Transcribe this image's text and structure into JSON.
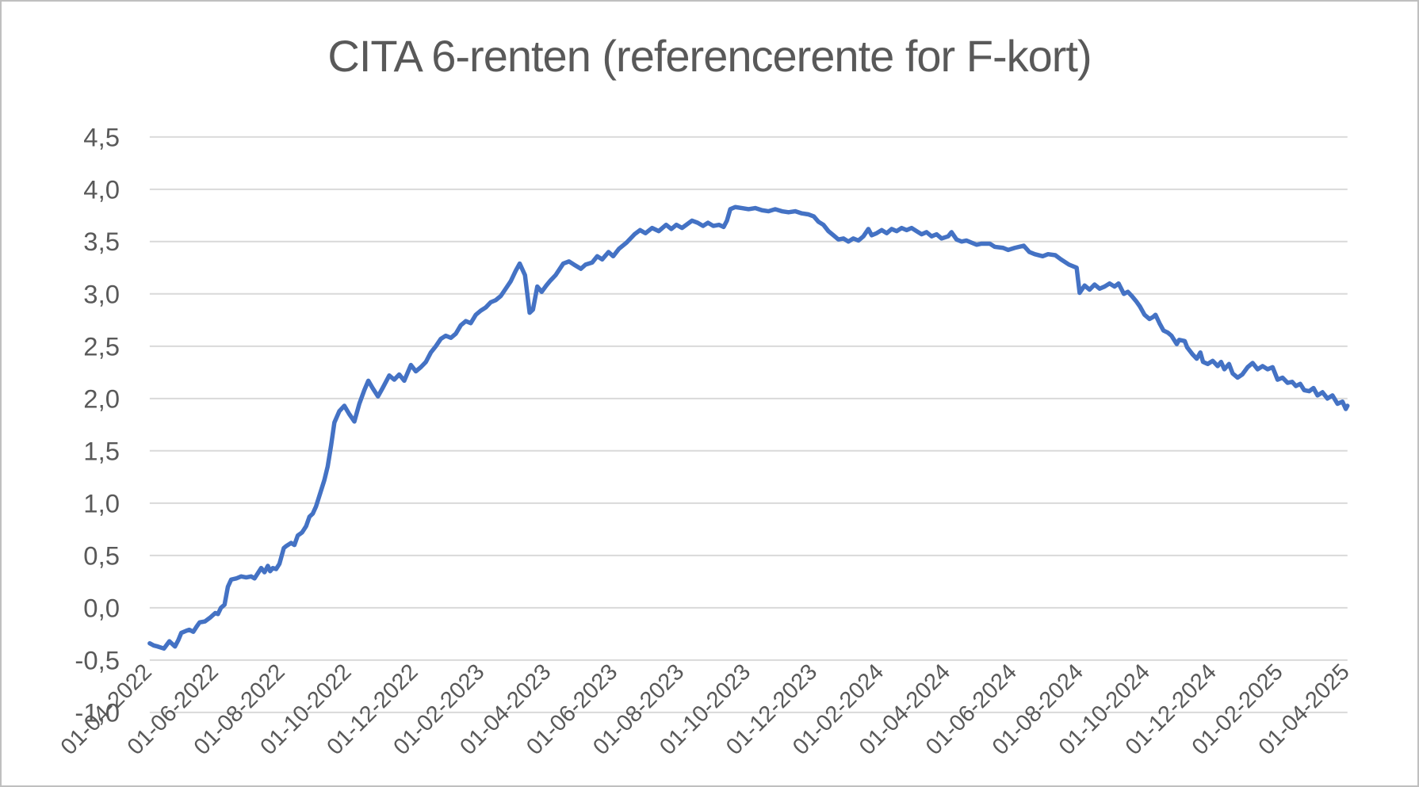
{
  "colors": {
    "line": "#4472C4",
    "grid": "#D9D9D9",
    "label": "#595959",
    "title": "#595959",
    "border": "#BFBFBF",
    "background": "#FFFFFF"
  },
  "chart_data": {
    "type": "line",
    "title": "CITA 6-renten (referencerente for F-kort)",
    "xlabel": "",
    "ylabel": "",
    "grid": "horizontal",
    "legend": "none",
    "decimal_style": "comma",
    "y_axis": {
      "min": -1.0,
      "max": 4.5,
      "step": 0.5,
      "tick_labels": [
        "4,5",
        "4,0",
        "3,5",
        "3,0",
        "2,5",
        "2,0",
        "1,5",
        "1,0",
        "0,5",
        "0,0",
        "-0,5",
        "-1,0"
      ]
    },
    "x_axis": {
      "unit": "months_after_first_tick",
      "range_months": [
        0,
        36
      ],
      "tick_every_months": 2,
      "tick_labels": [
        "01-04-2022",
        "01-06-2022",
        "01-08-2022",
        "01-10-2022",
        "01-12-2022",
        "01-02-2023",
        "01-04-2023",
        "01-06-2023",
        "01-08-2023",
        "01-10-2023",
        "01-12-2023",
        "01-02-2024",
        "01-04-2024",
        "01-06-2024",
        "01-08-2024",
        "01-10-2024",
        "01-12-2024",
        "01-02-2025",
        "01-04-2025"
      ]
    },
    "series": [
      {
        "name": "CITA 6-renten",
        "color": "#4472C4",
        "points": [
          [
            0,
            -0.34
          ],
          [
            0.12,
            -0.36
          ],
          [
            0.24,
            -0.37
          ],
          [
            0.43,
            -0.39
          ],
          [
            0.59,
            -0.32
          ],
          [
            0.76,
            -0.37
          ],
          [
            0.86,
            -0.31
          ],
          [
            0.95,
            -0.24
          ],
          [
            1.1,
            -0.22
          ],
          [
            1.19,
            -0.21
          ],
          [
            1.31,
            -0.23
          ],
          [
            1.41,
            -0.18
          ],
          [
            1.5,
            -0.14
          ],
          [
            1.66,
            -0.13
          ],
          [
            1.83,
            -0.09
          ],
          [
            1.97,
            -0.05
          ],
          [
            2.05,
            -0.06
          ],
          [
            2.14,
            0
          ],
          [
            2.25,
            0.03
          ],
          [
            2.35,
            0.2
          ],
          [
            2.45,
            0.27
          ],
          [
            2.6,
            0.28
          ],
          [
            2.75,
            0.3
          ],
          [
            2.9,
            0.29
          ],
          [
            3.05,
            0.3
          ],
          [
            3.15,
            0.28
          ],
          [
            3.25,
            0.33
          ],
          [
            3.35,
            0.38
          ],
          [
            3.45,
            0.34
          ],
          [
            3.55,
            0.4
          ],
          [
            3.62,
            0.35
          ],
          [
            3.7,
            0.38
          ],
          [
            3.8,
            0.37
          ],
          [
            3.9,
            0.42
          ],
          [
            4.03,
            0.57
          ],
          [
            4.1,
            0.59
          ],
          [
            4.25,
            0.62
          ],
          [
            4.35,
            0.6
          ],
          [
            4.45,
            0.69
          ],
          [
            4.58,
            0.72
          ],
          [
            4.7,
            0.78
          ],
          [
            4.8,
            0.87
          ],
          [
            4.9,
            0.9
          ],
          [
            5,
            0.97
          ],
          [
            5.15,
            1.12
          ],
          [
            5.25,
            1.22
          ],
          [
            5.35,
            1.35
          ],
          [
            5.45,
            1.55
          ],
          [
            5.55,
            1.77
          ],
          [
            5.7,
            1.88
          ],
          [
            5.85,
            1.93
          ],
          [
            6,
            1.85
          ],
          [
            6.15,
            1.78
          ],
          [
            6.3,
            1.95
          ],
          [
            6.45,
            2.08
          ],
          [
            6.57,
            2.17
          ],
          [
            6.7,
            2.1
          ],
          [
            6.86,
            2.02
          ],
          [
            7,
            2.1
          ],
          [
            7.2,
            2.22
          ],
          [
            7.35,
            2.18
          ],
          [
            7.5,
            2.23
          ],
          [
            7.65,
            2.17
          ],
          [
            7.85,
            2.32
          ],
          [
            8,
            2.26
          ],
          [
            8.15,
            2.3
          ],
          [
            8.3,
            2.35
          ],
          [
            8.45,
            2.44
          ],
          [
            8.6,
            2.5
          ],
          [
            8.75,
            2.57
          ],
          [
            8.9,
            2.6
          ],
          [
            9.05,
            2.58
          ],
          [
            9.2,
            2.62
          ],
          [
            9.35,
            2.7
          ],
          [
            9.5,
            2.74
          ],
          [
            9.65,
            2.72
          ],
          [
            9.8,
            2.8
          ],
          [
            9.95,
            2.84
          ],
          [
            10.1,
            2.87
          ],
          [
            10.25,
            2.92
          ],
          [
            10.4,
            2.94
          ],
          [
            10.55,
            2.98
          ],
          [
            10.7,
            3.05
          ],
          [
            10.85,
            3.12
          ],
          [
            11,
            3.22
          ],
          [
            11.12,
            3.29
          ],
          [
            11.28,
            3.18
          ],
          [
            11.42,
            2.82
          ],
          [
            11.52,
            2.85
          ],
          [
            11.65,
            3.07
          ],
          [
            11.78,
            3.02
          ],
          [
            11.92,
            3.08
          ],
          [
            12.05,
            3.13
          ],
          [
            12.2,
            3.18
          ],
          [
            12.43,
            3.29
          ],
          [
            12.6,
            3.31
          ],
          [
            12.75,
            3.28
          ],
          [
            12.96,
            3.24
          ],
          [
            13.1,
            3.28
          ],
          [
            13.3,
            3.3
          ],
          [
            13.45,
            3.36
          ],
          [
            13.6,
            3.33
          ],
          [
            13.79,
            3.4
          ],
          [
            13.93,
            3.36
          ],
          [
            14.1,
            3.43
          ],
          [
            14.33,
            3.49
          ],
          [
            14.57,
            3.57
          ],
          [
            14.74,
            3.61
          ],
          [
            14.9,
            3.58
          ],
          [
            15.1,
            3.63
          ],
          [
            15.3,
            3.6
          ],
          [
            15.52,
            3.66
          ],
          [
            15.68,
            3.62
          ],
          [
            15.83,
            3.66
          ],
          [
            16,
            3.63
          ],
          [
            16.3,
            3.7
          ],
          [
            16.47,
            3.68
          ],
          [
            16.63,
            3.65
          ],
          [
            16.78,
            3.68
          ],
          [
            16.94,
            3.65
          ],
          [
            17.11,
            3.66
          ],
          [
            17.25,
            3.64
          ],
          [
            17.35,
            3.7
          ],
          [
            17.45,
            3.81
          ],
          [
            17.6,
            3.83
          ],
          [
            17.8,
            3.82
          ],
          [
            18,
            3.81
          ],
          [
            18.2,
            3.82
          ],
          [
            18.4,
            3.8
          ],
          [
            18.6,
            3.79
          ],
          [
            18.8,
            3.81
          ],
          [
            19,
            3.79
          ],
          [
            19.2,
            3.78
          ],
          [
            19.4,
            3.79
          ],
          [
            19.6,
            3.77
          ],
          [
            19.8,
            3.76
          ],
          [
            19.96,
            3.74
          ],
          [
            20.1,
            3.69
          ],
          [
            20.25,
            3.66
          ],
          [
            20.4,
            3.6
          ],
          [
            20.55,
            3.56
          ],
          [
            20.7,
            3.52
          ],
          [
            20.85,
            3.53
          ],
          [
            21,
            3.5
          ],
          [
            21.15,
            3.53
          ],
          [
            21.3,
            3.51
          ],
          [
            21.45,
            3.55
          ],
          [
            21.6,
            3.62
          ],
          [
            21.7,
            3.56
          ],
          [
            21.85,
            3.58
          ],
          [
            22,
            3.61
          ],
          [
            22.15,
            3.58
          ],
          [
            22.3,
            3.62
          ],
          [
            22.45,
            3.6
          ],
          [
            22.6,
            3.63
          ],
          [
            22.75,
            3.61
          ],
          [
            22.9,
            3.63
          ],
          [
            23.05,
            3.6
          ],
          [
            23.2,
            3.57
          ],
          [
            23.35,
            3.59
          ],
          [
            23.5,
            3.55
          ],
          [
            23.65,
            3.57
          ],
          [
            23.8,
            3.53
          ],
          [
            24,
            3.55
          ],
          [
            24.1,
            3.59
          ],
          [
            24.25,
            3.52
          ],
          [
            24.4,
            3.5
          ],
          [
            24.55,
            3.51
          ],
          [
            24.7,
            3.49
          ],
          [
            24.85,
            3.47
          ],
          [
            25,
            3.48
          ],
          [
            25.25,
            3.48
          ],
          [
            25.4,
            3.45
          ],
          [
            25.65,
            3.44
          ],
          [
            25.8,
            3.42
          ],
          [
            26,
            3.44
          ],
          [
            26.27,
            3.46
          ],
          [
            26.44,
            3.4
          ],
          [
            26.6,
            3.38
          ],
          [
            26.84,
            3.36
          ],
          [
            27,
            3.38
          ],
          [
            27.22,
            3.37
          ],
          [
            27.39,
            3.33
          ],
          [
            27.63,
            3.28
          ],
          [
            27.86,
            3.25
          ],
          [
            27.95,
            3.01
          ],
          [
            28.1,
            3.08
          ],
          [
            28.25,
            3.04
          ],
          [
            28.4,
            3.09
          ],
          [
            28.55,
            3.05
          ],
          [
            28.7,
            3.07
          ],
          [
            28.85,
            3.1
          ],
          [
            29,
            3.07
          ],
          [
            29.12,
            3.1
          ],
          [
            29.28,
            3
          ],
          [
            29.4,
            3.02
          ],
          [
            29.52,
            2.98
          ],
          [
            29.65,
            2.93
          ],
          [
            29.76,
            2.88
          ],
          [
            29.9,
            2.8
          ],
          [
            30.05,
            2.76
          ],
          [
            30.16,
            2.78
          ],
          [
            30.23,
            2.8
          ],
          [
            30.35,
            2.72
          ],
          [
            30.47,
            2.65
          ],
          [
            30.6,
            2.63
          ],
          [
            30.71,
            2.6
          ],
          [
            30.87,
            2.52
          ],
          [
            30.94,
            2.56
          ],
          [
            31.11,
            2.55
          ],
          [
            31.18,
            2.49
          ],
          [
            31.35,
            2.42
          ],
          [
            31.47,
            2.38
          ],
          [
            31.58,
            2.44
          ],
          [
            31.66,
            2.35
          ],
          [
            31.8,
            2.33
          ],
          [
            31.95,
            2.36
          ],
          [
            32.1,
            2.31
          ],
          [
            32.2,
            2.35
          ],
          [
            32.3,
            2.28
          ],
          [
            32.44,
            2.33
          ],
          [
            32.55,
            2.24
          ],
          [
            32.7,
            2.2
          ],
          [
            32.84,
            2.23
          ],
          [
            33,
            2.3
          ],
          [
            33.15,
            2.34
          ],
          [
            33.3,
            2.28
          ],
          [
            33.45,
            2.31
          ],
          [
            33.6,
            2.28
          ],
          [
            33.75,
            2.3
          ],
          [
            33.9,
            2.18
          ],
          [
            34.05,
            2.2
          ],
          [
            34.2,
            2.15
          ],
          [
            34.34,
            2.16
          ],
          [
            34.45,
            2.12
          ],
          [
            34.58,
            2.14
          ],
          [
            34.7,
            2.08
          ],
          [
            34.85,
            2.07
          ],
          [
            34.98,
            2.1
          ],
          [
            35.1,
            2.03
          ],
          [
            35.25,
            2.06
          ],
          [
            35.4,
            2
          ],
          [
            35.55,
            2.03
          ],
          [
            35.7,
            1.95
          ],
          [
            35.85,
            1.97
          ],
          [
            35.95,
            1.9
          ],
          [
            36,
            1.93
          ]
        ]
      }
    ]
  }
}
